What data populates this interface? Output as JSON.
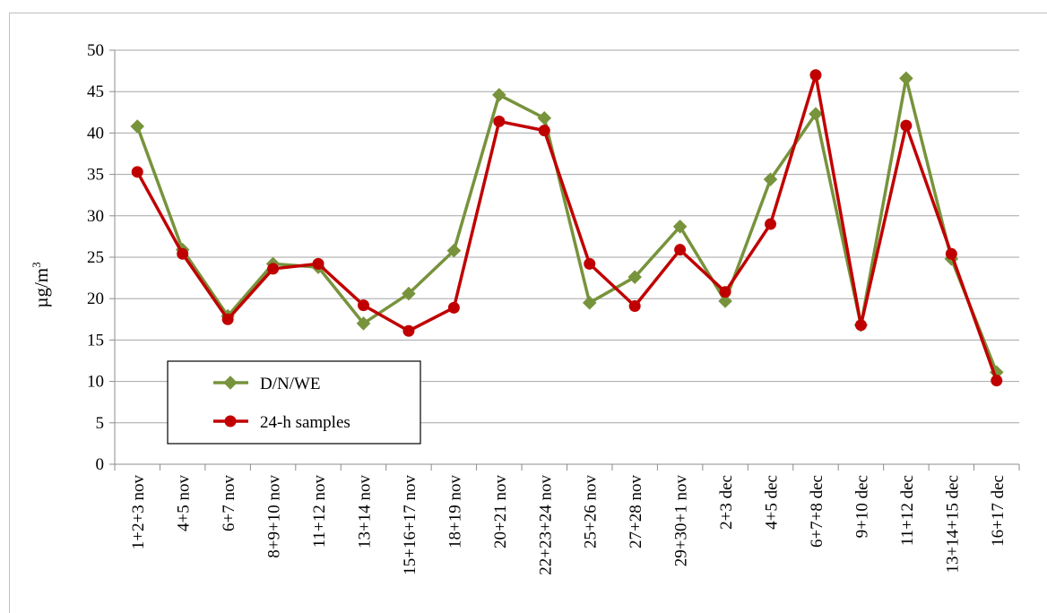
{
  "chart_data": {
    "type": "line",
    "title": "",
    "xlabel": "",
    "ylabel": "µg/m",
    "ylabel_superscript": "3",
    "ylim": [
      0,
      50
    ],
    "yticks": [
      0,
      5,
      10,
      15,
      20,
      25,
      30,
      35,
      40,
      45,
      50
    ],
    "grid": true,
    "legend_position": "lower-left",
    "categories": [
      "1+2+3 nov",
      "4+5 nov",
      "6+7 nov",
      "8+9+10 nov",
      "11+12 nov",
      "13+14 nov",
      "15+16+17 nov",
      "18+19 nov",
      "20+21 nov",
      "22+23+24 nov",
      "25+26 nov",
      "27+28 nov",
      "29+30+1 nov",
      "2+3 dec",
      "4+5 dec",
      "6+7+8 dec",
      "9+10 dec",
      "11+12 dec",
      "13+14+15 dec",
      "16+17 dec"
    ],
    "series": [
      {
        "name": "D/N/WE",
        "color": "#77933c",
        "marker": "diamond",
        "values": [
          40.8,
          25.9,
          17.9,
          24.2,
          23.8,
          17.0,
          20.6,
          25.8,
          44.6,
          41.8,
          19.5,
          22.6,
          28.7,
          19.7,
          34.4,
          42.3,
          16.8,
          46.6,
          24.8,
          11.1
        ]
      },
      {
        "name": "24-h samples",
        "color": "#c00000",
        "marker": "circle",
        "values": [
          35.3,
          25.4,
          17.5,
          23.6,
          24.2,
          19.2,
          16.1,
          18.9,
          41.4,
          40.3,
          24.2,
          19.1,
          25.9,
          20.8,
          29.0,
          47.0,
          16.8,
          40.9,
          25.4,
          10.1
        ]
      }
    ]
  }
}
